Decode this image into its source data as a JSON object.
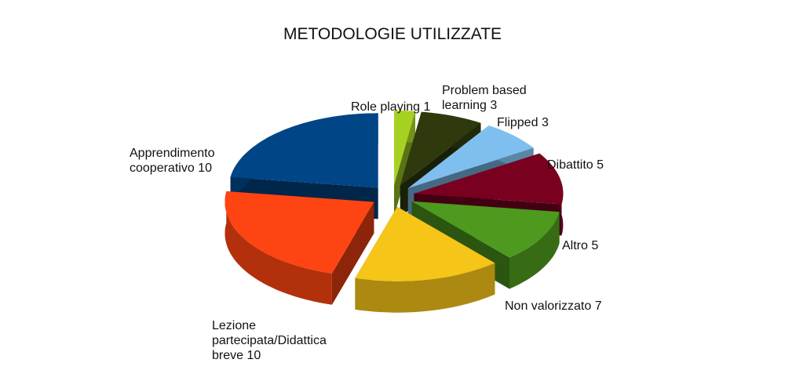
{
  "chart_data": {
    "type": "pie3d",
    "title": "METODOLOGIE UTILIZZATE",
    "categories": [
      "Role playing",
      "Problem based learning",
      "Flipped",
      "Dibattito",
      "Altro",
      "Non valorizzato",
      "Lezione partecipata/Didattica breve",
      "Apprendimento cooperativo"
    ],
    "values": [
      1,
      3,
      3,
      5,
      5,
      7,
      10,
      10
    ],
    "colors": [
      "#a6d122",
      "#2e3a0e",
      "#7fbfef",
      "#7a0020",
      "#4e9a1e",
      "#f5c518",
      "#ff4413",
      "#004586"
    ]
  }
}
